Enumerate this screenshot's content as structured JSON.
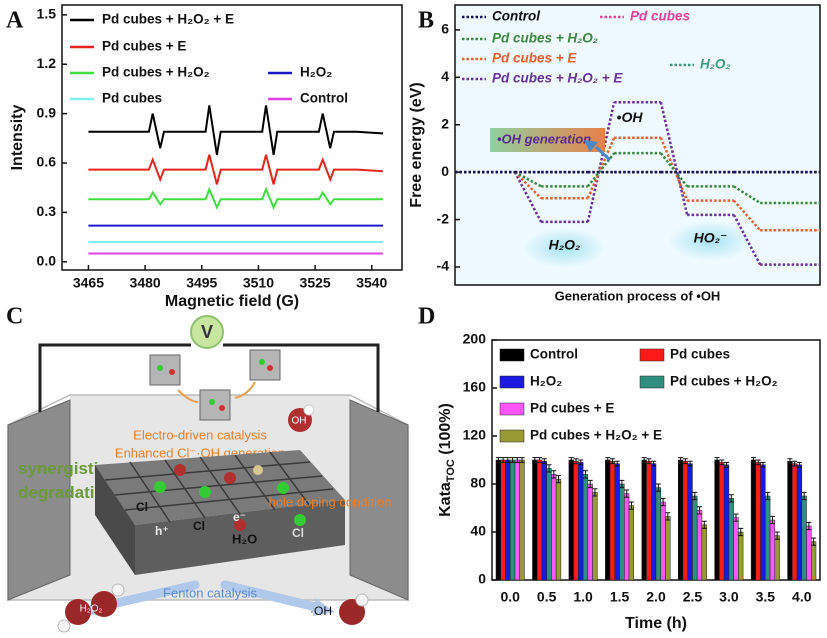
{
  "chart_data": [
    {
      "type": "line",
      "panel_label": "A",
      "x_label": "Magnetic field (G)",
      "y_label": "Intensity",
      "x": [
        3465,
        3474,
        3481,
        3482,
        3484,
        3485,
        3490,
        3496,
        3497,
        3499,
        3500,
        3505,
        3511,
        3512,
        3514,
        3515,
        3520,
        3526,
        3527,
        3529,
        3530,
        3536,
        3543
      ],
      "series": [
        {
          "name": "Pd cubes + H₂O₂ + E",
          "color": "#000000",
          "values": [
            0.79,
            0.79,
            0.79,
            0.9,
            0.69,
            0.79,
            0.79,
            0.79,
            0.95,
            0.65,
            0.79,
            0.79,
            0.79,
            0.95,
            0.65,
            0.79,
            0.79,
            0.79,
            0.9,
            0.69,
            0.79,
            0.79,
            0.78
          ]
        },
        {
          "name": "Pd cubes  + E",
          "color": "#e8241c",
          "values": [
            0.56,
            0.56,
            0.56,
            0.62,
            0.5,
            0.56,
            0.56,
            0.56,
            0.65,
            0.47,
            0.56,
            0.56,
            0.56,
            0.65,
            0.47,
            0.56,
            0.56,
            0.56,
            0.62,
            0.5,
            0.56,
            0.56,
            0.55
          ]
        },
        {
          "name": "Pd cubes  + H₂O₂",
          "color": "#3de03d",
          "values": [
            0.38,
            0.38,
            0.38,
            0.42,
            0.35,
            0.38,
            0.38,
            0.38,
            0.44,
            0.33,
            0.38,
            0.38,
            0.38,
            0.44,
            0.33,
            0.38,
            0.38,
            0.38,
            0.42,
            0.35,
            0.38,
            0.38,
            0.38
          ]
        },
        {
          "name": "H₂O₂",
          "color": "#1a1acc",
          "values": [
            0.22,
            0.22,
            0.22,
            0.22,
            0.22,
            0.22,
            0.22,
            0.22,
            0.22,
            0.22,
            0.22,
            0.22,
            0.22,
            0.22,
            0.22,
            0.22,
            0.22,
            0.22,
            0.22,
            0.22,
            0.22,
            0.22,
            0.22
          ]
        },
        {
          "name": "Pd cubes",
          "color": "#7ff0f0",
          "values": [
            0.12,
            0.12,
            0.12,
            0.12,
            0.12,
            0.12,
            0.12,
            0.12,
            0.12,
            0.12,
            0.12,
            0.12,
            0.12,
            0.12,
            0.12,
            0.12,
            0.12,
            0.12,
            0.12,
            0.12,
            0.12,
            0.12,
            0.12
          ]
        },
        {
          "name": "Control",
          "color": "#e040e0",
          "values": [
            0.05,
            0.05,
            0.05,
            0.05,
            0.05,
            0.05,
            0.05,
            0.05,
            0.05,
            0.05,
            0.05,
            0.05,
            0.05,
            0.05,
            0.05,
            0.05,
            0.05,
            0.05,
            0.05,
            0.05,
            0.05,
            0.05,
            0.05
          ]
        }
      ],
      "xlim": [
        3458,
        3548
      ],
      "xticks": [
        3465,
        3480,
        3495,
        3510,
        3525,
        3540
      ],
      "ylim": [
        -0.05,
        1.56
      ],
      "yticks": [
        {
          "value": 0,
          "label": "0.0"
        },
        0.3,
        0.6,
        0.9,
        1.2,
        1.5
      ]
    },
    {
      "type": "step",
      "panel_label": "B",
      "x_label": "Generation process of •OH",
      "y_label": "Free energy (eV)",
      "categories": [
        null,
        "H₂O₂",
        "•OH",
        "HO₂⁻",
        null
      ],
      "series": [
        {
          "name": "Control",
          "color": "#14145a",
          "values": [
            0,
            0,
            0,
            0,
            0
          ]
        },
        {
          "name": "Pd cubes",
          "color": "#e8409a",
          "values": [
            0,
            0,
            0,
            0,
            0
          ]
        },
        {
          "name": "H₂O₂",
          "color": "#3a9a7a",
          "values": [
            0,
            0,
            0,
            0,
            0
          ]
        },
        {
          "name": "Pd cubes + H₂O₂",
          "color": "#3a8a3a",
          "values": [
            0,
            -0.6,
            0.8,
            -0.6,
            -1.3
          ]
        },
        {
          "name": "Pd cubes + E",
          "color": "#e8602a",
          "values": [
            0,
            -1.1,
            1.45,
            -1.2,
            -2.45
          ]
        },
        {
          "name": "Pd cubes + H₂O₂ + E",
          "color": "#6a30a0",
          "values": [
            0,
            -2.1,
            2.95,
            -1.8,
            -3.9
          ]
        }
      ],
      "ylim": [
        -4.76,
        7.05
      ],
      "yticks": [
        -4,
        -2,
        0,
        2,
        4,
        6
      ],
      "annotation": "•OH generation"
    },
    {
      "type": "bar",
      "panel_label": "D",
      "x_label": "Time (h)",
      "y_label": [
        "Kata",
        "TOC",
        " (100%)"
      ],
      "categories": [
        "0.0",
        "0.5",
        "1.0",
        "1.5",
        "2.0",
        "2.5",
        "3.0",
        "3.5",
        "4.0"
      ],
      "series": [
        {
          "name": "Control",
          "color": "#000000",
          "values": [
            100,
            100,
            100,
            100,
            100,
            100,
            100,
            100,
            99
          ],
          "errors": [
            2,
            2,
            2,
            2,
            2,
            2,
            2,
            2,
            2
          ]
        },
        {
          "name": "Pd cubes",
          "color": "#ff1a1a",
          "values": [
            100,
            100,
            99,
            99,
            99,
            99,
            98,
            98,
            97
          ],
          "errors": [
            2,
            2,
            2,
            2,
            2,
            2,
            2,
            2,
            2
          ]
        },
        {
          "name": "H₂O₂",
          "color": "#1a1ae0",
          "values": [
            100,
            99,
            98,
            97,
            97,
            97,
            96,
            96,
            96
          ],
          "errors": [
            2,
            2,
            2,
            2,
            2,
            2,
            2,
            2,
            2
          ]
        },
        {
          "name": "Pd cubes  + H₂O₂",
          "color": "#2f8f80",
          "values": [
            100,
            93,
            88,
            80,
            77,
            70,
            68,
            70,
            70
          ],
          "errors": [
            2,
            3,
            3,
            3,
            3,
            3,
            3,
            3,
            3
          ]
        },
        {
          "name": "Pd cubes  + E",
          "color": "#ff55ff",
          "values": [
            100,
            88,
            80,
            72,
            65,
            58,
            52,
            50,
            45
          ],
          "errors": [
            2,
            3,
            3,
            3,
            3,
            3,
            3,
            3,
            3
          ]
        },
        {
          "name": "Pd cubes + H₂O₂  + E",
          "color": "#9a9a35",
          "values": [
            100,
            84,
            73,
            62,
            53,
            46,
            40,
            37,
            32
          ],
          "errors": [
            2,
            3,
            3,
            3,
            3,
            3,
            3,
            3,
            3
          ]
        }
      ],
      "ylim": [
        0,
        200
      ],
      "yticks": [
        0,
        40,
        80,
        120,
        160,
        200
      ]
    }
  ],
  "schematic": {
    "panel_label": "C",
    "source": "V",
    "electro": "Electro-driven catalysis",
    "enhanced": "Enhanced Cl⁻·OH generation",
    "synergy": [
      "synergistic",
      "degradation"
    ],
    "hole": "hole doping condition",
    "fenton": "Fenton catalysis",
    "species": {
      "oh_top": "OH",
      "h2o2": "H₂O₂",
      "oh_bottom": "·OH",
      "cl": "Cl",
      "h": "h⁺",
      "e": "e⁻",
      "h2o": "H₂O"
    }
  }
}
